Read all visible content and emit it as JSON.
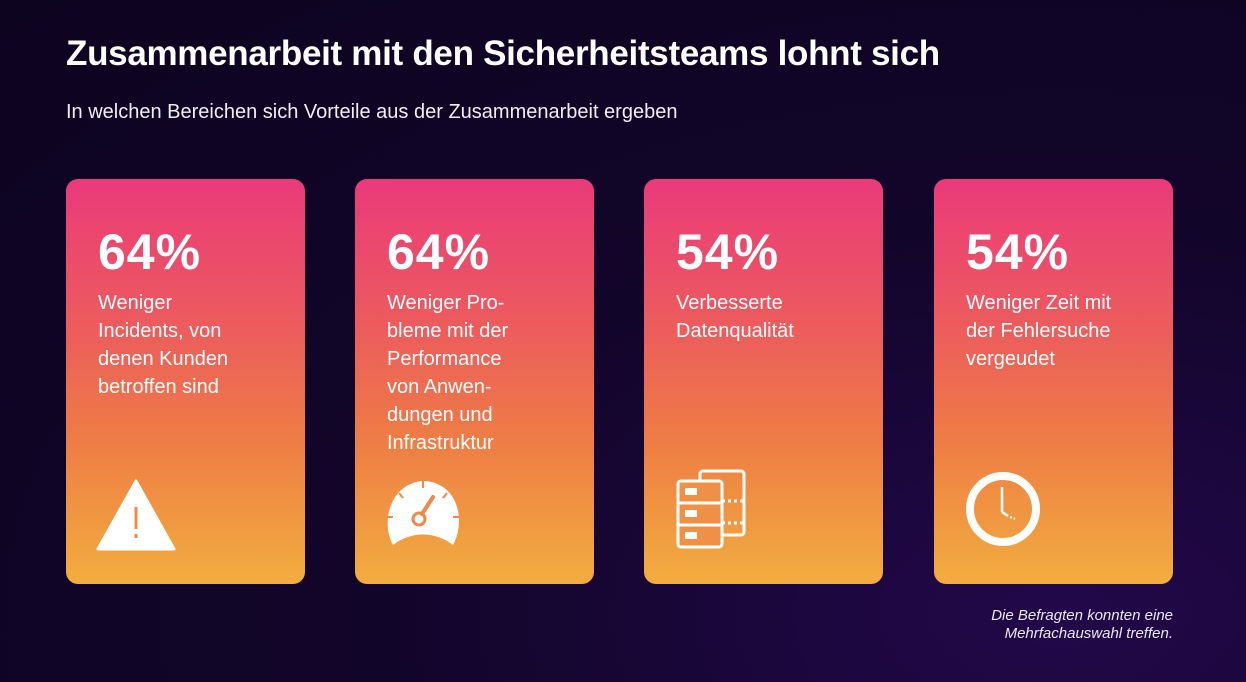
{
  "header": {
    "title": "Zusammenarbeit mit den Sicherheitsteams lohnt sich",
    "subtitle": "In welchen Bereichen sich Vorteile aus der Zusammenarbeit ergeben"
  },
  "cards": [
    {
      "percent": "64%",
      "lines": [
        "Weniger",
        "Incidents, von",
        "denen Kunden",
        "betroffen sind"
      ],
      "icon": "warning-icon"
    },
    {
      "percent": "64%",
      "lines": [
        "Weniger Pro-",
        "bleme mit der",
        "Performance",
        "von Anwen-",
        "dungen und",
        "Infrastruktur"
      ],
      "icon": "speedometer-icon"
    },
    {
      "percent": "54%",
      "lines": [
        "Verbesserte",
        "Datenqualität"
      ],
      "icon": "database-servers-icon"
    },
    {
      "percent": "54%",
      "lines": [
        "Weniger Zeit mit",
        "der Fehlersuche",
        "vergeudet"
      ],
      "icon": "clock-icon"
    }
  ],
  "footnote": {
    "line1": "Die Befragten konnten eine",
    "line2": "Mehrfachauswahl treffen."
  }
}
